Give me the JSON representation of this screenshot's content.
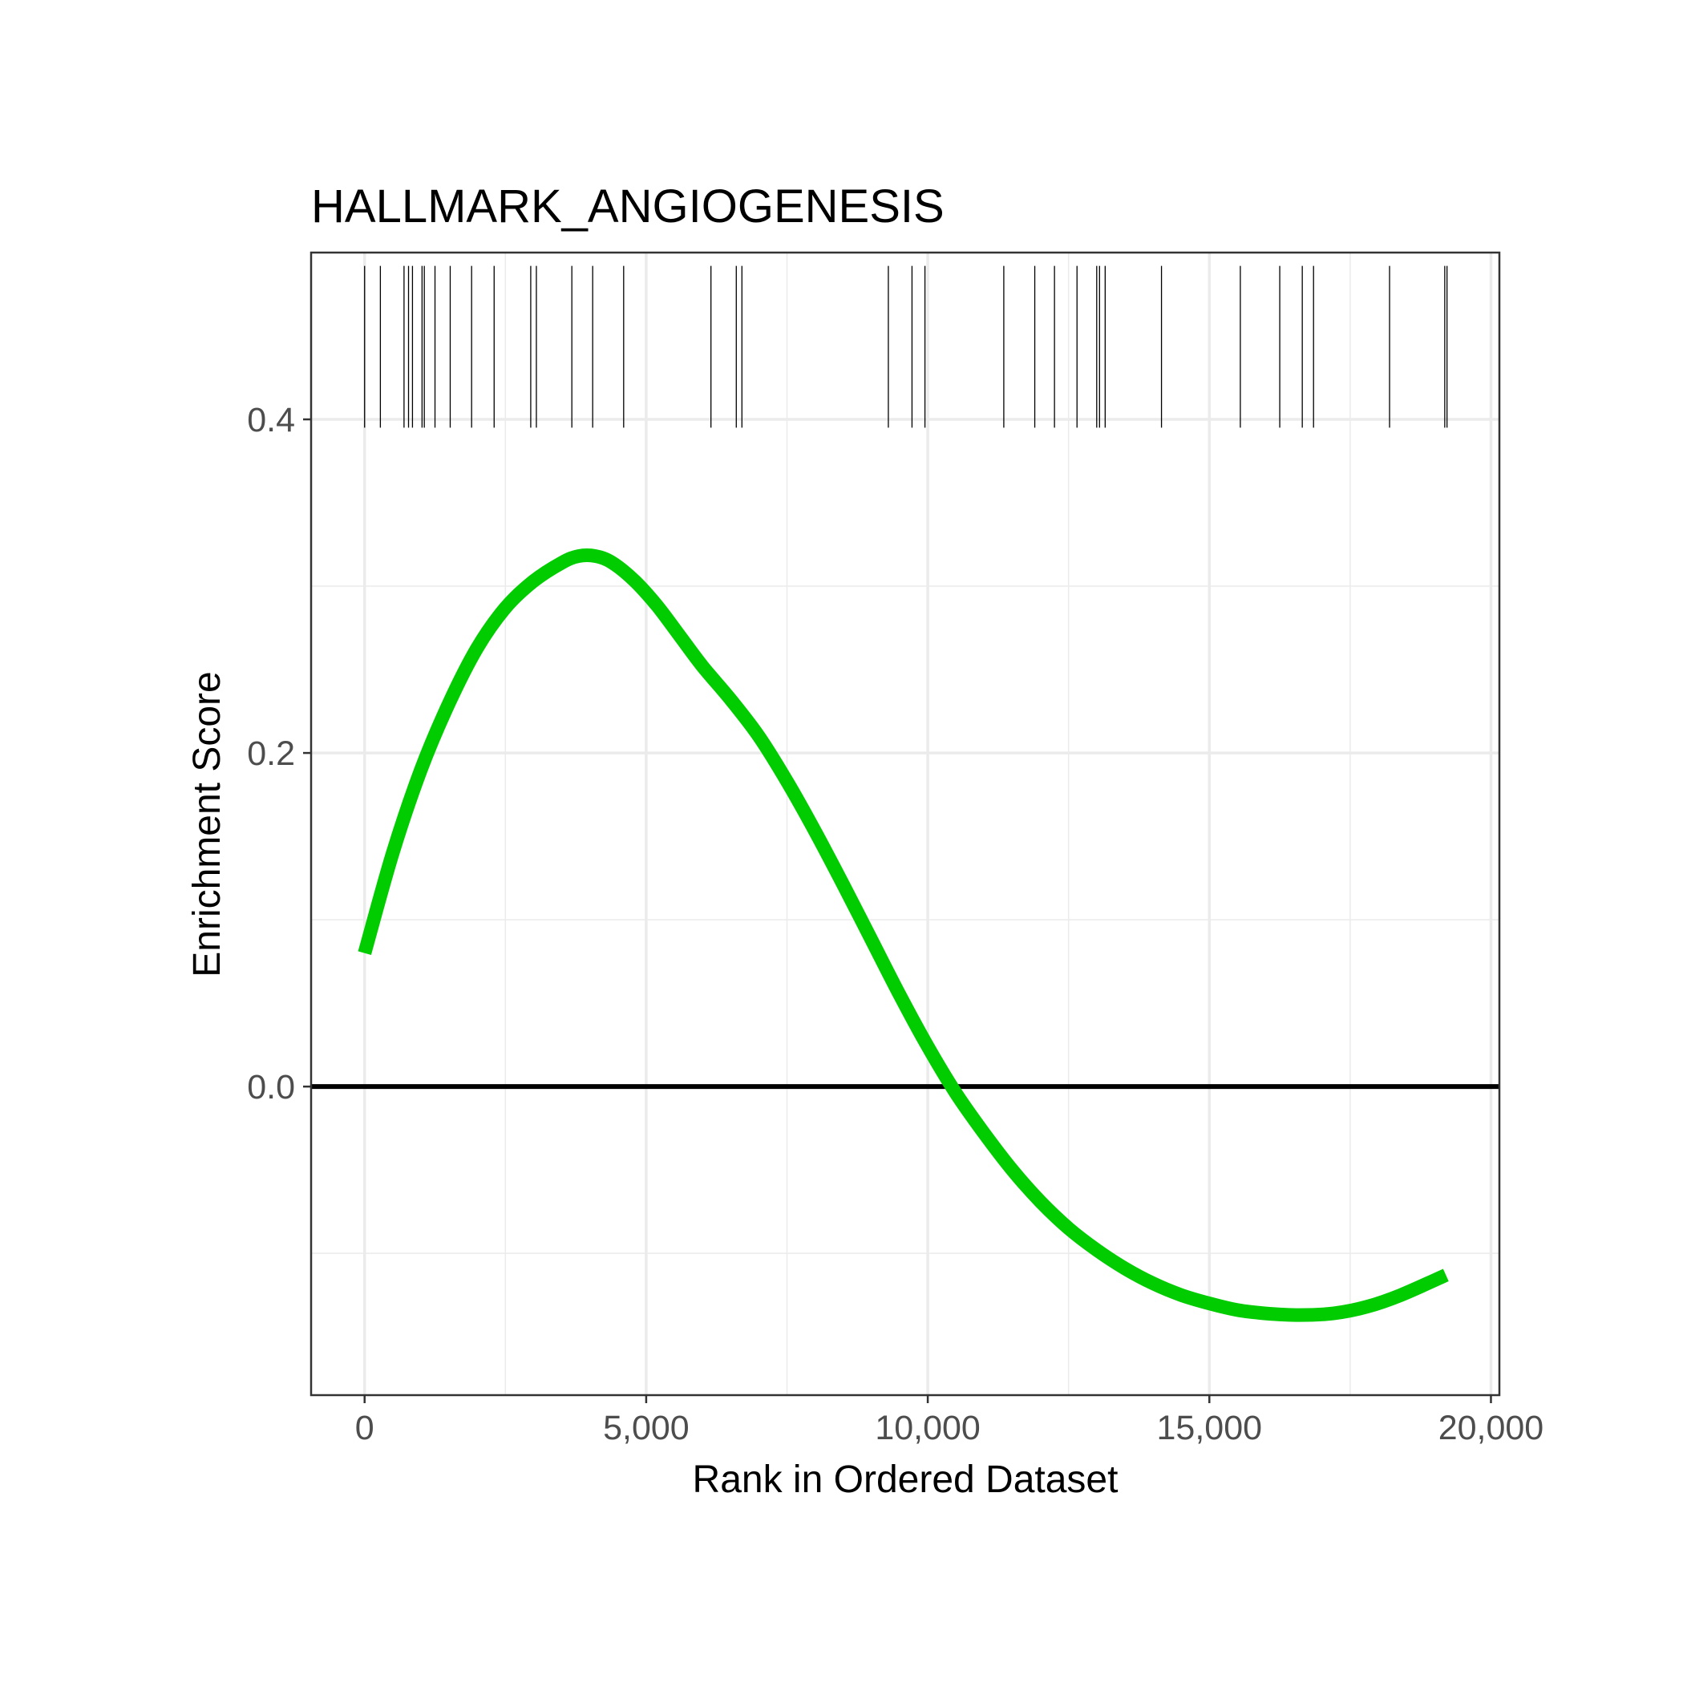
{
  "chart_data": {
    "type": "line",
    "title": "HALLMARK_ANGIOGENESIS",
    "xlabel": "Rank in Ordered Dataset",
    "ylabel": "Enrichment Score",
    "xlim": [
      -950,
      20150
    ],
    "ylim": [
      -0.185,
      0.5
    ],
    "x_ticks": [
      0,
      5000,
      10000,
      15000,
      20000
    ],
    "x_tick_labels": [
      "0",
      "5,000",
      "10,000",
      "15,000",
      "20,000"
    ],
    "y_ticks": [
      0.0,
      0.2,
      0.4
    ],
    "y_tick_labels": [
      "0.0",
      "0.2",
      "0.4"
    ],
    "grid": true,
    "zero_line": true,
    "colors": {
      "curve": "#00CC00",
      "zero_line": "#000000",
      "hits": "#000000",
      "grid": "#ebebeb",
      "panel_border": "#333333"
    },
    "series": [
      {
        "x": [
          0,
          500,
          1000,
          1500,
          2000,
          2500,
          3000,
          3500,
          3800,
          4100,
          4400,
          4800,
          5200,
          5600,
          6000,
          6500,
          7000,
          7500,
          8000,
          8500,
          9000,
          9500,
          10000,
          10500,
          11000,
          11500,
          12000,
          12500,
          13000,
          13500,
          14000,
          14500,
          15000,
          15500,
          16000,
          16600,
          17200,
          17800,
          18400,
          19200
        ],
        "values": [
          0.08,
          0.14,
          0.19,
          0.23,
          0.263,
          0.287,
          0.303,
          0.314,
          0.318,
          0.318,
          0.314,
          0.303,
          0.288,
          0.27,
          0.252,
          0.232,
          0.21,
          0.183,
          0.153,
          0.121,
          0.088,
          0.055,
          0.024,
          -0.004,
          -0.028,
          -0.05,
          -0.069,
          -0.085,
          -0.098,
          -0.109,
          -0.118,
          -0.125,
          -0.13,
          -0.134,
          -0.136,
          -0.137,
          -0.136,
          -0.132,
          -0.125,
          -0.113
        ]
      }
    ],
    "hit_ranks": [
      0,
      280,
      700,
      780,
      850,
      1020,
      1060,
      1250,
      1520,
      1900,
      2300,
      2950,
      3050,
      3680,
      4050,
      4600,
      6150,
      6600,
      6700,
      9300,
      9720,
      9950,
      11350,
      11900,
      12250,
      12650,
      13000,
      13050,
      13150,
      14150,
      15550,
      16250,
      16650,
      16850,
      18200,
      19180,
      19220
    ]
  }
}
